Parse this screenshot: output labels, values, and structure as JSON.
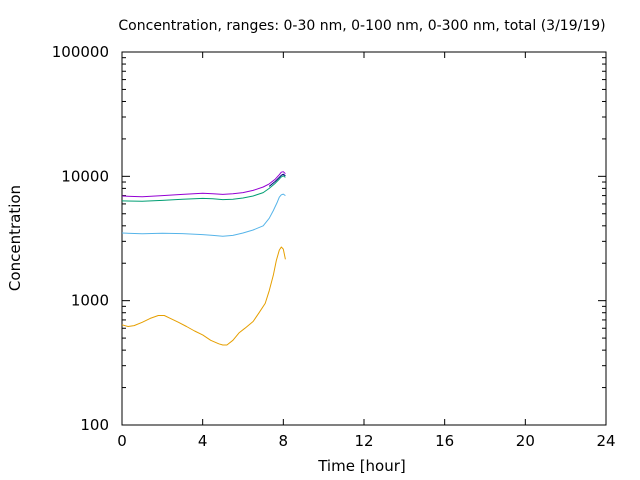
{
  "chart_data": {
    "type": "line",
    "title": "Concentration, ranges: 0-30 nm, 0-100 nm, 0-300 nm, total (3/19/19)",
    "xlabel": "Time [hour]",
    "ylabel": "Concentration",
    "xlim": [
      0,
      24
    ],
    "ylim": [
      100,
      100000
    ],
    "yscale": "log",
    "x_ticks": [
      "0",
      "4",
      "8",
      "12",
      "16",
      "20",
      "24"
    ],
    "y_ticks": [
      "100",
      "1000",
      "10000",
      "100000"
    ],
    "grid": false,
    "legend": "none",
    "series": [
      {
        "color": "#9400d3",
        "x": [
          0,
          1,
          2,
          3,
          4,
          4.5,
          5,
          5.5,
          6,
          6.5,
          7,
          7.3,
          7.6,
          7.8,
          7.9,
          8.0,
          8.1
        ],
        "y": [
          6950,
          6850,
          7000,
          7150,
          7300,
          7250,
          7150,
          7250,
          7400,
          7700,
          8200,
          8700,
          9500,
          10300,
          10800,
          10900,
          10500
        ]
      },
      {
        "color": "#000080",
        "x": [
          7.3,
          7.6,
          7.8,
          7.9,
          8.0,
          8.1
        ],
        "y": [
          8300,
          9100,
          9800,
          10200,
          10400,
          10100
        ]
      },
      {
        "color": "#009e73",
        "x": [
          0,
          1,
          2,
          3,
          4,
          4.5,
          5,
          5.5,
          6,
          6.5,
          7,
          7.3,
          7.6,
          7.8,
          7.9,
          8.0,
          8.1
        ],
        "y": [
          6350,
          6300,
          6400,
          6550,
          6650,
          6600,
          6500,
          6550,
          6700,
          6950,
          7400,
          8000,
          8800,
          9500,
          9900,
          10100,
          9800
        ]
      },
      {
        "color": "#56b4e9",
        "x": [
          0,
          1,
          2,
          3,
          4,
          4.5,
          5,
          5.5,
          6,
          6.5,
          7,
          7.3,
          7.5,
          7.7,
          7.8,
          7.9,
          8.0,
          8.1
        ],
        "y": [
          3500,
          3450,
          3480,
          3460,
          3400,
          3350,
          3300,
          3350,
          3500,
          3700,
          4000,
          4600,
          5300,
          6200,
          6800,
          7100,
          7200,
          7000
        ]
      },
      {
        "color": "#e69f00",
        "x": [
          0,
          0.3,
          0.6,
          1.0,
          1.4,
          1.8,
          2.1,
          2.4,
          2.8,
          3.2,
          3.6,
          4.0,
          4.4,
          4.8,
          5.0,
          5.2,
          5.5,
          5.8,
          6.1,
          6.5,
          6.8,
          7.1,
          7.3,
          7.5,
          7.65,
          7.8,
          7.9,
          8.0,
          8.1
        ],
        "y": [
          640,
          620,
          630,
          670,
          720,
          760,
          760,
          720,
          670,
          620,
          570,
          530,
          480,
          450,
          440,
          440,
          480,
          550,
          600,
          680,
          800,
          950,
          1200,
          1600,
          2100,
          2550,
          2700,
          2600,
          2150
        ]
      }
    ]
  }
}
